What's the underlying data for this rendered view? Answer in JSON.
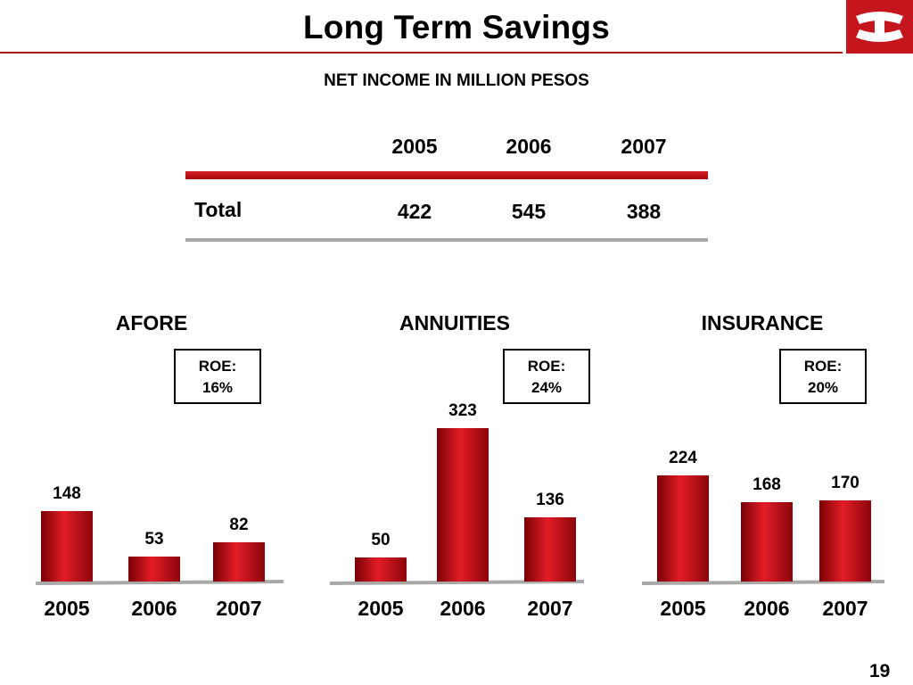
{
  "title": "Long Term Savings",
  "subtitle": "NET INCOME IN MILLION PESOS",
  "logo_icon": "bank-logo-icon",
  "accent_color": "#c4161c",
  "table": {
    "years": [
      "2005",
      "2006",
      "2007"
    ],
    "row_label": "Total",
    "values": [
      "422",
      "545",
      "388"
    ]
  },
  "page_number": "19",
  "chart_data": [
    {
      "type": "bar",
      "title": "AFORE",
      "roe_label": "ROE:",
      "roe_value": "16%",
      "categories": [
        "2005",
        "2006",
        "2007"
      ],
      "values": [
        148,
        53,
        82
      ],
      "xlabel": "",
      "ylabel": "",
      "ylim": [
        0,
        323
      ],
      "grid": false,
      "legend": "none",
      "bar_color": "#c4161c"
    },
    {
      "type": "bar",
      "title": "ANNUITIES",
      "roe_label": "ROE:",
      "roe_value": "24%",
      "categories": [
        "2005",
        "2006",
        "2007"
      ],
      "values": [
        50,
        323,
        136
      ],
      "xlabel": "",
      "ylabel": "",
      "ylim": [
        0,
        323
      ],
      "grid": false,
      "legend": "none",
      "bar_color": "#c4161c"
    },
    {
      "type": "bar",
      "title": "INSURANCE",
      "roe_label": "ROE:",
      "roe_value": "20%",
      "categories": [
        "2005",
        "2006",
        "2007"
      ],
      "values": [
        224,
        168,
        170
      ],
      "xlabel": "",
      "ylabel": "",
      "ylim": [
        0,
        323
      ],
      "grid": false,
      "legend": "none",
      "bar_color": "#c4161c"
    }
  ]
}
